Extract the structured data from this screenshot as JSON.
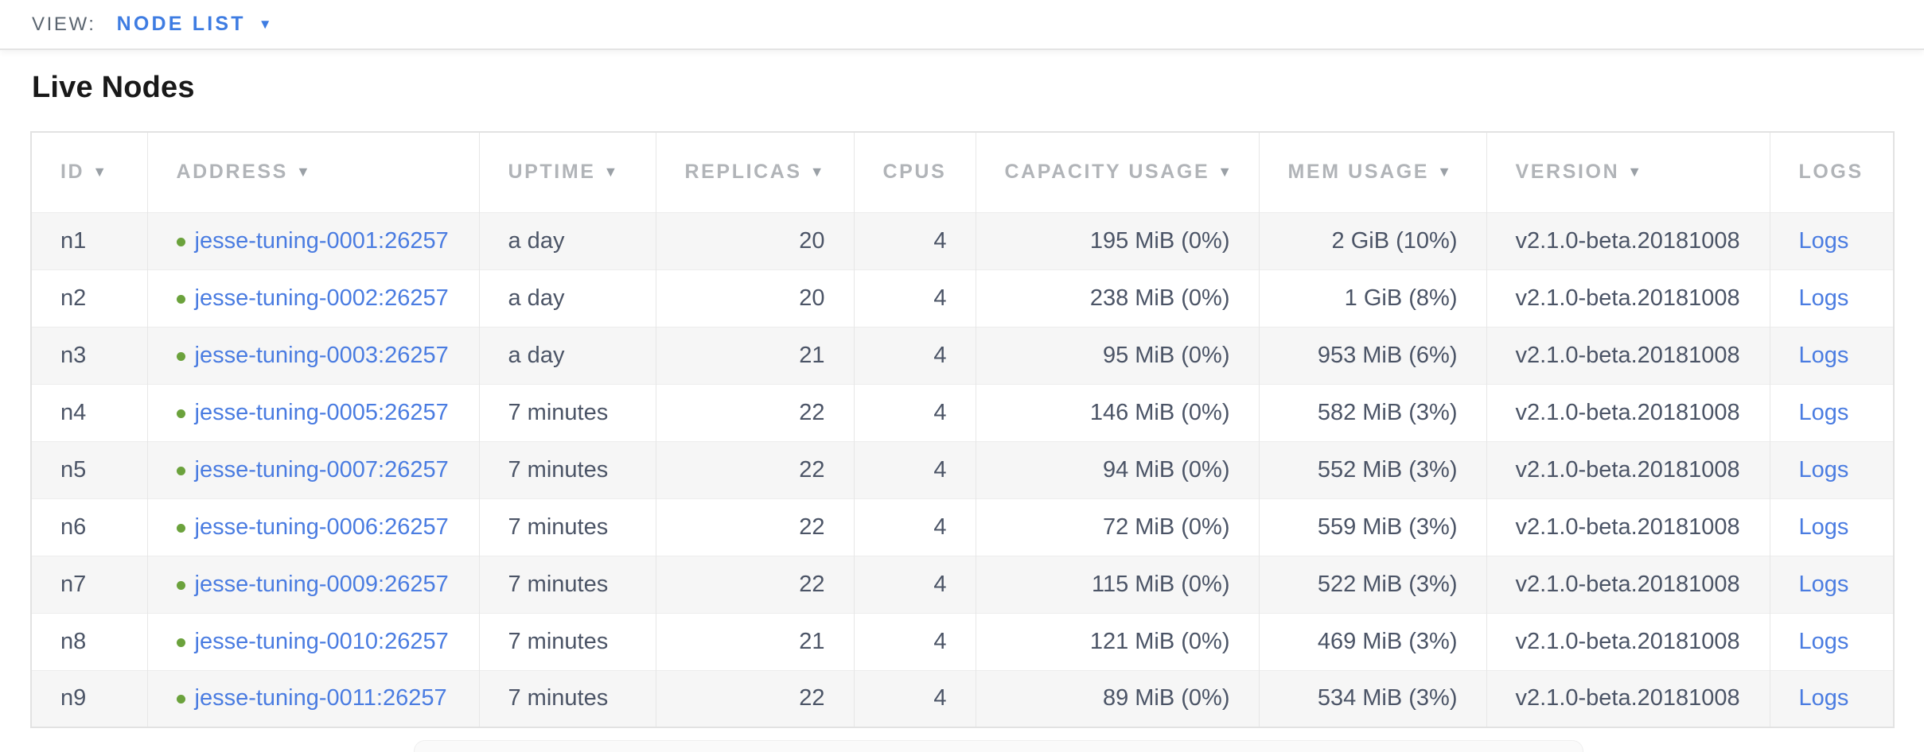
{
  "view_bar": {
    "label": "VIEW:",
    "selected": "NODE LIST",
    "caret_icon": "▼"
  },
  "page": {
    "title": "Live Nodes"
  },
  "table": {
    "columns": [
      {
        "key": "id",
        "label": "ID",
        "sortable": true,
        "align": "left"
      },
      {
        "key": "address",
        "label": "ADDRESS",
        "sortable": true,
        "align": "left"
      },
      {
        "key": "uptime",
        "label": "UPTIME",
        "sortable": true,
        "align": "left"
      },
      {
        "key": "replicas",
        "label": "REPLICAS",
        "sortable": true,
        "align": "right"
      },
      {
        "key": "cpus",
        "label": "CPUS",
        "sortable": false,
        "align": "right"
      },
      {
        "key": "capacity",
        "label": "CAPACITY USAGE",
        "sortable": true,
        "align": "right"
      },
      {
        "key": "mem",
        "label": "MEM USAGE",
        "sortable": true,
        "align": "right"
      },
      {
        "key": "version",
        "label": "VERSION",
        "sortable": true,
        "align": "left"
      },
      {
        "key": "logs",
        "label": "LOGS",
        "sortable": false,
        "align": "left"
      }
    ],
    "sort_arrow_icon": "▼",
    "rows": [
      {
        "id": "n1",
        "address": "jesse-tuning-0001:26257",
        "uptime": "a day",
        "replicas": "20",
        "cpus": "4",
        "capacity": "195 MiB (0%)",
        "mem": "2 GiB (10%)",
        "version": "v2.1.0-beta.20181008",
        "logs": "Logs",
        "status": "healthy"
      },
      {
        "id": "n2",
        "address": "jesse-tuning-0002:26257",
        "uptime": "a day",
        "replicas": "20",
        "cpus": "4",
        "capacity": "238 MiB (0%)",
        "mem": "1 GiB (8%)",
        "version": "v2.1.0-beta.20181008",
        "logs": "Logs",
        "status": "healthy"
      },
      {
        "id": "n3",
        "address": "jesse-tuning-0003:26257",
        "uptime": "a day",
        "replicas": "21",
        "cpus": "4",
        "capacity": "95 MiB (0%)",
        "mem": "953 MiB (6%)",
        "version": "v2.1.0-beta.20181008",
        "logs": "Logs",
        "status": "healthy"
      },
      {
        "id": "n4",
        "address": "jesse-tuning-0005:26257",
        "uptime": "7 minutes",
        "replicas": "22",
        "cpus": "4",
        "capacity": "146 MiB (0%)",
        "mem": "582 MiB (3%)",
        "version": "v2.1.0-beta.20181008",
        "logs": "Logs",
        "status": "healthy"
      },
      {
        "id": "n5",
        "address": "jesse-tuning-0007:26257",
        "uptime": "7 minutes",
        "replicas": "22",
        "cpus": "4",
        "capacity": "94 MiB (0%)",
        "mem": "552 MiB (3%)",
        "version": "v2.1.0-beta.20181008",
        "logs": "Logs",
        "status": "healthy"
      },
      {
        "id": "n6",
        "address": "jesse-tuning-0006:26257",
        "uptime": "7 minutes",
        "replicas": "22",
        "cpus": "4",
        "capacity": "72 MiB (0%)",
        "mem": "559 MiB (3%)",
        "version": "v2.1.0-beta.20181008",
        "logs": "Logs",
        "status": "healthy"
      },
      {
        "id": "n7",
        "address": "jesse-tuning-0009:26257",
        "uptime": "7 minutes",
        "replicas": "22",
        "cpus": "4",
        "capacity": "115 MiB (0%)",
        "mem": "522 MiB (3%)",
        "version": "v2.1.0-beta.20181008",
        "logs": "Logs",
        "status": "healthy"
      },
      {
        "id": "n8",
        "address": "jesse-tuning-0010:26257",
        "uptime": "7 minutes",
        "replicas": "21",
        "cpus": "4",
        "capacity": "121 MiB (0%)",
        "mem": "469 MiB (3%)",
        "version": "v2.1.0-beta.20181008",
        "logs": "Logs",
        "status": "healthy"
      },
      {
        "id": "n9",
        "address": "jesse-tuning-0011:26257",
        "uptime": "7 minutes",
        "replicas": "22",
        "cpus": "4",
        "capacity": "89 MiB (0%)",
        "mem": "534 MiB (3%)",
        "version": "v2.1.0-beta.20181008",
        "logs": "Logs",
        "status": "healthy"
      }
    ]
  },
  "colors": {
    "accent_blue": "#3e7ce2",
    "link_blue": "#4a7ce1",
    "healthy_green": "#6ba23c",
    "header_gray": "#b1b4b8",
    "cell_slate": "#4b5466"
  }
}
